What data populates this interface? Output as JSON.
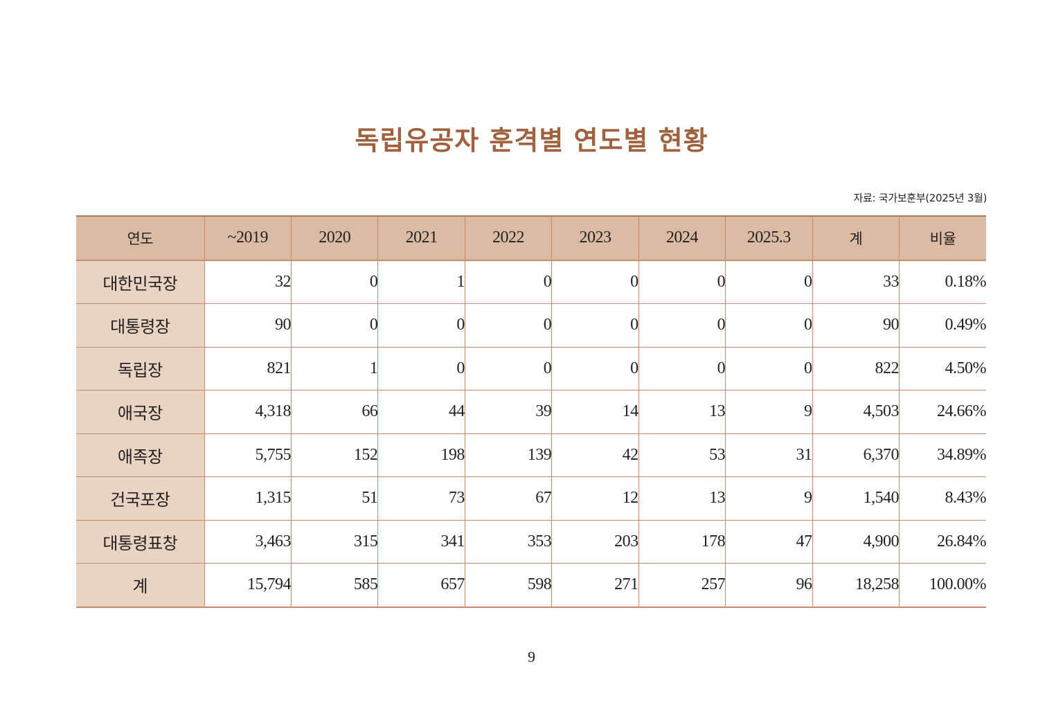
{
  "title": "독립유공자 훈격별 연도별 현황",
  "source": "자료: 국가보훈부(2025년 3월)",
  "table": {
    "headers": [
      "연도",
      "~2019",
      "2020",
      "2021",
      "2022",
      "2023",
      "2024",
      "2025.3",
      "계",
      "비율"
    ],
    "rows": [
      {
        "label": "대한민국장",
        "cells": [
          "32",
          "0",
          "1",
          "0",
          "0",
          "0",
          "0",
          "33",
          "0.18%"
        ]
      },
      {
        "label": "대통령장",
        "cells": [
          "90",
          "0",
          "0",
          "0",
          "0",
          "0",
          "0",
          "90",
          "0.49%"
        ]
      },
      {
        "label": "독립장",
        "cells": [
          "821",
          "1",
          "0",
          "0",
          "0",
          "0",
          "0",
          "822",
          "4.50%"
        ]
      },
      {
        "label": "애국장",
        "cells": [
          "4,318",
          "66",
          "44",
          "39",
          "14",
          "13",
          "9",
          "4,503",
          "24.66%"
        ]
      },
      {
        "label": "애족장",
        "cells": [
          "5,755",
          "152",
          "198",
          "139",
          "42",
          "53",
          "31",
          "6,370",
          "34.89%"
        ]
      },
      {
        "label": "건국포장",
        "cells": [
          "1,315",
          "51",
          "73",
          "67",
          "12",
          "13",
          "9",
          "1,540",
          "8.43%"
        ]
      },
      {
        "label": "대통령표창",
        "cells": [
          "3,463",
          "315",
          "341",
          "353",
          "203",
          "178",
          "47",
          "4,900",
          "26.84%"
        ]
      },
      {
        "label": "계",
        "cells": [
          "15,794",
          "585",
          "657",
          "598",
          "271",
          "257",
          "96",
          "18,258",
          "100.00%"
        ]
      }
    ]
  },
  "page_number": "9",
  "colors": {
    "title": "#a0623e",
    "header_bg": "#dcbba5",
    "row_label_bg": "#e9d3c3",
    "border": "#c8896a"
  }
}
